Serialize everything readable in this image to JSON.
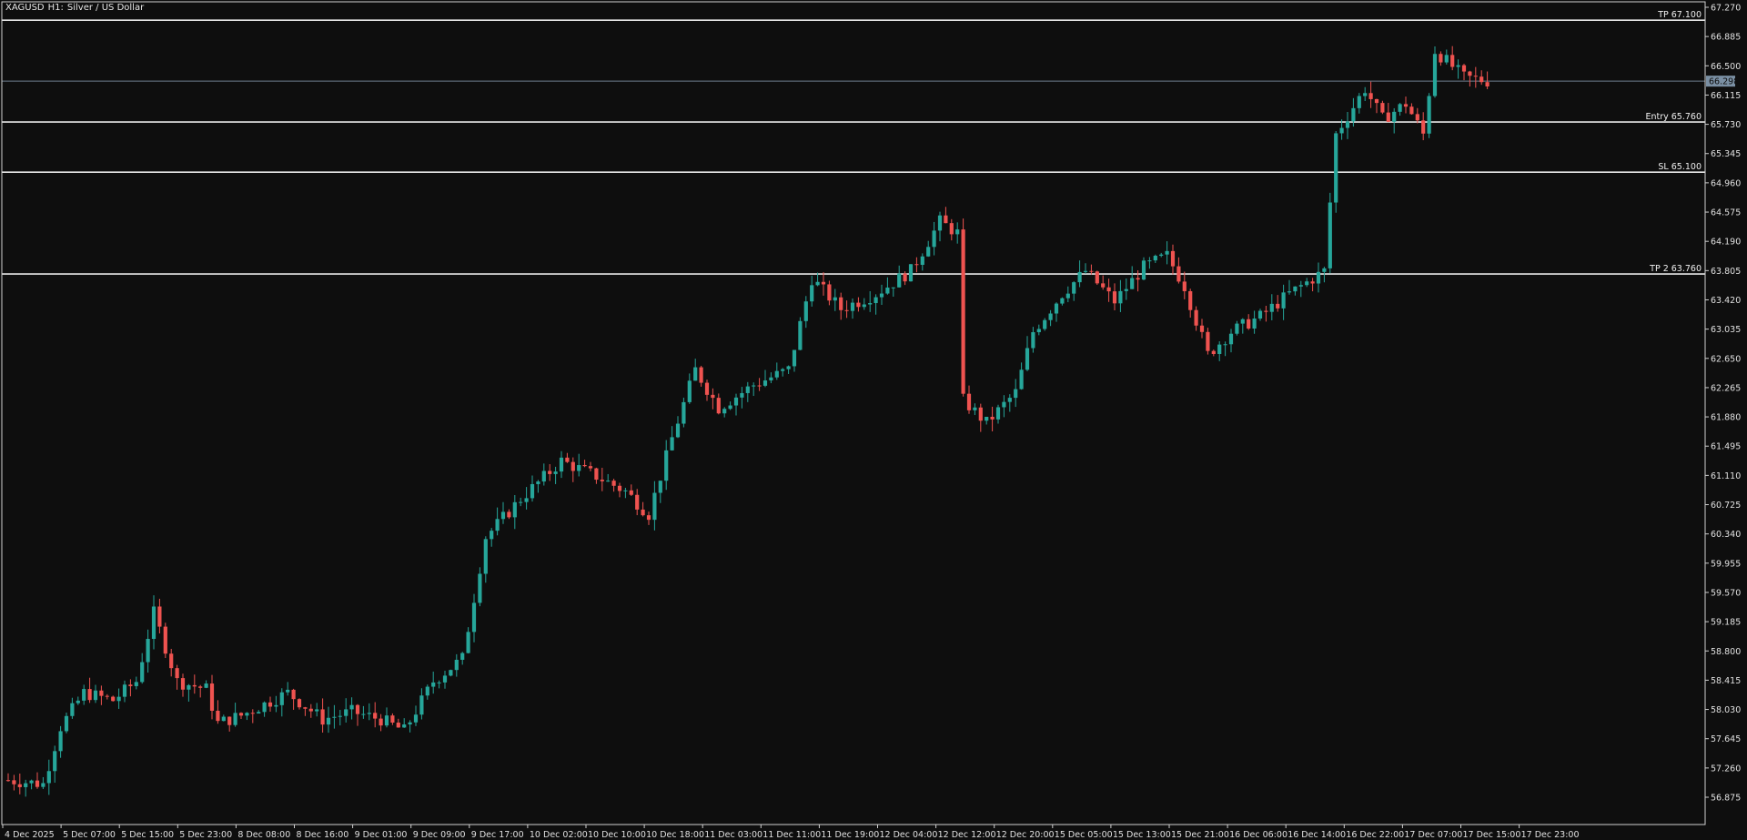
{
  "header": {
    "symbol": "XAGUSD",
    "timeframe": "H1:",
    "description": "Silver / US Dollar"
  },
  "price_badge": "66.298",
  "levels": [
    {
      "label": "TP 67.100",
      "price": 67.1
    },
    {
      "label": "Entry 65.760",
      "price": 65.76
    },
    {
      "label": "SL 65.100",
      "price": 65.1
    },
    {
      "label": "TP 2 63.760",
      "price": 63.76
    }
  ],
  "chart_data": {
    "type": "candlestick",
    "symbol": "XAGUSD",
    "timeframe": "H1",
    "ylim": [
      56.7,
      67.3
    ],
    "y_ticks": [
      "67.270",
      "66.885",
      "66.500",
      "66.115",
      "65.730",
      "65.345",
      "64.960",
      "64.575",
      "64.190",
      "63.805",
      "63.420",
      "63.035",
      "62.650",
      "62.265",
      "61.880",
      "61.495",
      "61.110",
      "60.725",
      "60.340",
      "59.955",
      "59.570",
      "59.185",
      "58.800",
      "58.415",
      "58.030",
      "57.645",
      "57.260",
      "56.875"
    ],
    "x_ticks": [
      "4 Dec 2025",
      "5 Dec 07:00",
      "5 Dec 15:00",
      "5 Dec 23:00",
      "8 Dec 08:00",
      "8 Dec 16:00",
      "9 Dec 01:00",
      "9 Dec 09:00",
      "9 Dec 17:00",
      "10 Dec 02:00",
      "10 Dec 10:00",
      "10 Dec 18:00",
      "11 Dec 03:00",
      "11 Dec 11:00",
      "11 Dec 19:00",
      "12 Dec 04:00",
      "12 Dec 12:00",
      "12 Dec 20:00",
      "15 Dec 05:00",
      "15 Dec 13:00",
      "15 Dec 21:00",
      "16 Dec 06:00",
      "16 Dec 14:00",
      "16 Dec 22:00",
      "17 Dec 07:00",
      "17 Dec 15:00",
      "17 Dec 23:00"
    ],
    "last_price": 66.298,
    "grid": false,
    "up_color": "#26a69a",
    "down_color": "#ef5350",
    "waypoints": [
      [
        0,
        57.1
      ],
      [
        6,
        57.05
      ],
      [
        9,
        57.8
      ],
      [
        13,
        58.25
      ],
      [
        18,
        58.15
      ],
      [
        22,
        58.4
      ],
      [
        25,
        59.3
      ],
      [
        29,
        58.4
      ],
      [
        34,
        58.3
      ],
      [
        36,
        57.85
      ],
      [
        40,
        57.95
      ],
      [
        48,
        58.25
      ],
      [
        54,
        57.9
      ],
      [
        59,
        58.0
      ],
      [
        64,
        57.9
      ],
      [
        68,
        57.75
      ],
      [
        73,
        58.4
      ],
      [
        78,
        58.7
      ],
      [
        82,
        60.3
      ],
      [
        88,
        60.8
      ],
      [
        95,
        61.3
      ],
      [
        101,
        61.1
      ],
      [
        106,
        60.9
      ],
      [
        110,
        60.6
      ],
      [
        114,
        61.6
      ],
      [
        118,
        62.5
      ],
      [
        122,
        62.0
      ],
      [
        128,
        62.3
      ],
      [
        134,
        62.5
      ],
      [
        138,
        63.7
      ],
      [
        143,
        63.3
      ],
      [
        149,
        63.5
      ],
      [
        155,
        63.8
      ],
      [
        160,
        64.45
      ],
      [
        163,
        64.3
      ],
      [
        164,
        62.1
      ],
      [
        168,
        61.8
      ],
      [
        173,
        62.2
      ],
      [
        176,
        63.0
      ],
      [
        181,
        63.5
      ],
      [
        185,
        63.8
      ],
      [
        190,
        63.4
      ],
      [
        195,
        63.85
      ],
      [
        199,
        64.0
      ],
      [
        202,
        63.6
      ],
      [
        206,
        62.7
      ],
      [
        210,
        63.0
      ],
      [
        215,
        63.2
      ],
      [
        220,
        63.5
      ],
      [
        226,
        63.8
      ],
      [
        228,
        65.6
      ],
      [
        233,
        66.2
      ],
      [
        236,
        65.8
      ],
      [
        240,
        66.0
      ],
      [
        243,
        65.6
      ],
      [
        245,
        66.7
      ],
      [
        250,
        66.35
      ],
      [
        254,
        66.3
      ]
    ]
  }
}
